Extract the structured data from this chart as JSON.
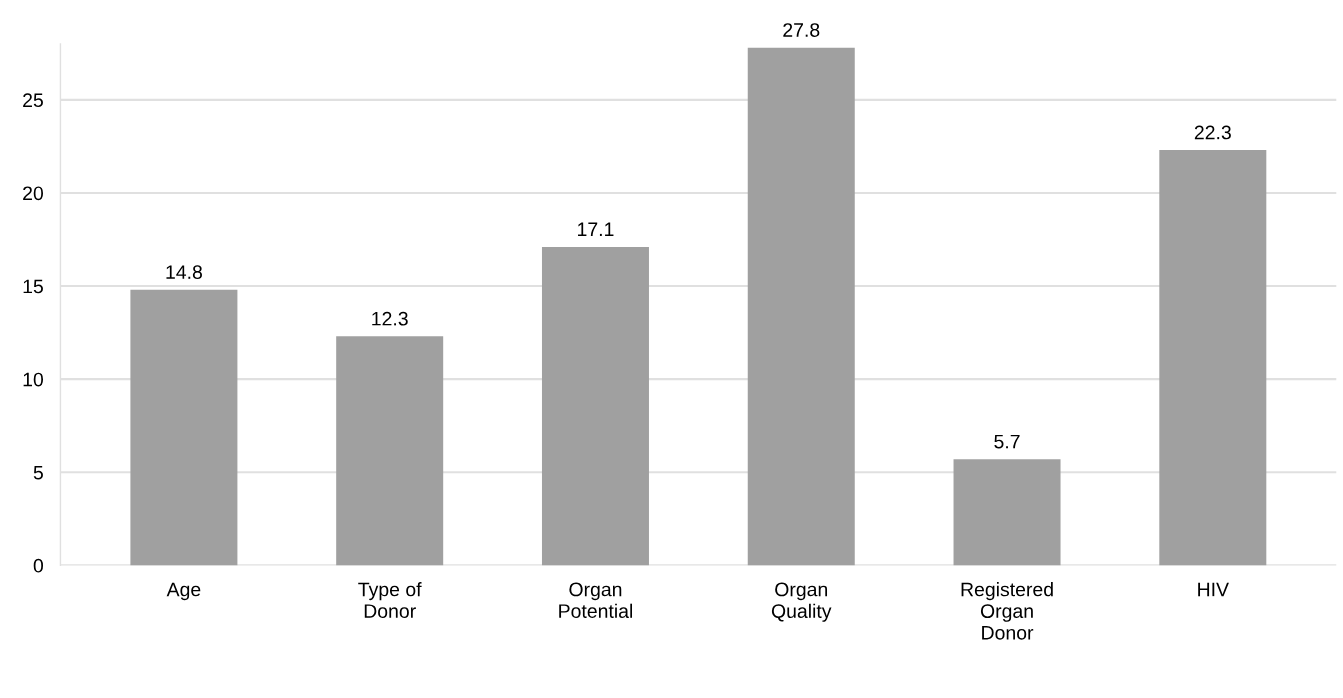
{
  "chart_data": {
    "type": "bar",
    "categories": [
      "Age",
      "Type of\nDonor",
      "Organ\nPotential",
      "Organ\nQuality",
      "Registered\nOrgan\nDonor",
      "HIV"
    ],
    "values": [
      14.8,
      12.3,
      17.1,
      27.8,
      5.7,
      22.3
    ],
    "color": "#a0a0a0",
    "ylim": [
      0,
      28
    ],
    "yticks": [
      0,
      5,
      10,
      15,
      20,
      25
    ],
    "grid": "y",
    "data_labels": true
  }
}
